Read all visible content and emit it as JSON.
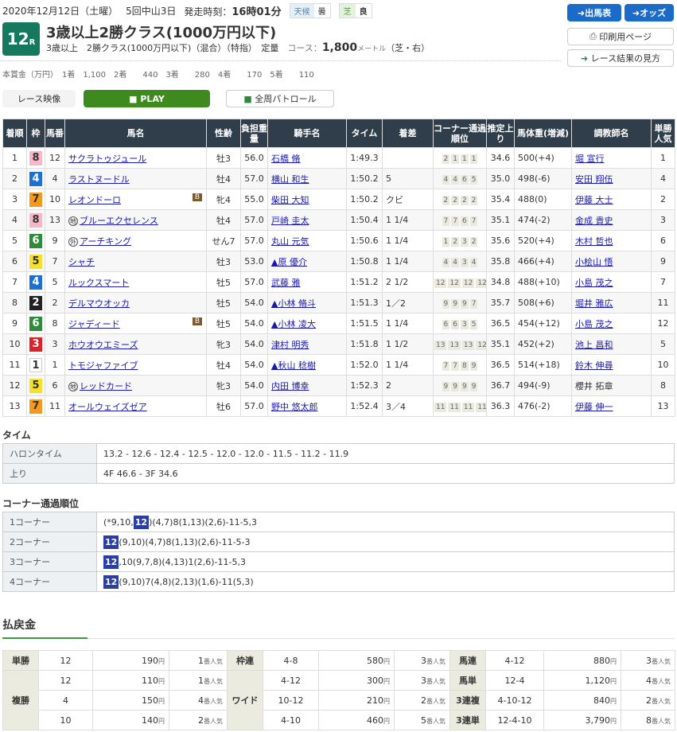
{
  "header": {
    "date": "2020年12月12日（土曜）",
    "meeting": "5回中山3日",
    "start_label": "発走時刻：",
    "start_time": "16時01分",
    "weather_label": "天候",
    "weather": "曇",
    "surface_label": "芝",
    "condition": "良"
  },
  "race": {
    "number": "12",
    "r": "R",
    "title": "3歳以上2勝クラス(1000万円以下)",
    "sub": "3歳以上　2勝クラス(1000万円以下)（混合）（特指）　定量",
    "course_label": "コース：",
    "distance": "1,800",
    "unit": "メートル",
    "course_detail": "（芝・右）"
  },
  "prize": "本賞金（万円）　1着　1,100　2着　　440　3着　　280　4着　　170　5着　　110",
  "buttons": {
    "entries": "出馬表",
    "odds": "オッズ",
    "print": "印刷用ページ",
    "howto": "レース結果の見方",
    "video": "レース映像",
    "play": "PLAY",
    "patrol": "全周パトロール"
  },
  "colors": {
    "accent": "#157a5d",
    "header_bg": "#2f3e4a",
    "button_blue": "#1b6bc8",
    "play_green": "#3e8a1e",
    "highlight": "#2b3fa0"
  },
  "columns": [
    "着順",
    "枠",
    "馬番",
    "馬名",
    "性齢",
    "負担重量",
    "騎手名",
    "タイム",
    "着差",
    "コーナー通過順位",
    "推定上り",
    "馬体重(増減)",
    "調教師名",
    "単勝人気"
  ],
  "results": [
    {
      "pos": "1",
      "waku": "8",
      "num": "12",
      "horse": "サクラトゥジュール",
      "mark": "",
      "blinker": false,
      "sex": "牡3",
      "wt": "56.0",
      "jockey": "石橋 脩",
      "time": "1:49.3",
      "margin": "",
      "corners": [
        "2",
        "1",
        "1",
        "1"
      ],
      "last": "34.6",
      "bw": "500(+4)",
      "trainer": "堀 宣行",
      "pop": "1"
    },
    {
      "pos": "2",
      "waku": "4",
      "num": "4",
      "horse": "ラストヌードル",
      "mark": "",
      "blinker": false,
      "sex": "牡4",
      "wt": "57.0",
      "jockey": "横山 和生",
      "time": "1:50.2",
      "margin": "5",
      "corners": [
        "4",
        "4",
        "6",
        "5"
      ],
      "last": "35.0",
      "bw": "498(-6)",
      "trainer": "安田 翔伍",
      "pop": "4"
    },
    {
      "pos": "3",
      "waku": "7",
      "num": "10",
      "horse": "レオンドーロ",
      "mark": "",
      "blinker": true,
      "sex": "牝4",
      "wt": "55.0",
      "jockey": "柴田 大知",
      "time": "1:50.2",
      "margin": "クビ",
      "corners": [
        "2",
        "2",
        "2",
        "2"
      ],
      "last": "35.4",
      "bw": "488(0)",
      "trainer": "伊藤 大士",
      "pop": "2"
    },
    {
      "pos": "4",
      "waku": "8",
      "num": "13",
      "horse": "ブルーエクセレンス",
      "mark": "地",
      "blinker": false,
      "sex": "牡4",
      "wt": "57.0",
      "jockey": "戸崎 圭太",
      "time": "1:50.4",
      "margin": "1 1/4",
      "corners": [
        "7",
        "7",
        "6",
        "7"
      ],
      "last": "35.1",
      "bw": "474(-2)",
      "trainer": "金成 貴史",
      "pop": "3"
    },
    {
      "pos": "5",
      "waku": "6",
      "num": "9",
      "horse": "アーチキング",
      "mark": "外",
      "blinker": false,
      "sex": "せん7",
      "wt": "57.0",
      "jockey": "丸山 元気",
      "time": "1:50.6",
      "margin": "1 1/4",
      "corners": [
        "1",
        "2",
        "3",
        "2"
      ],
      "last": "35.6",
      "bw": "520(+4)",
      "trainer": "木村 哲也",
      "pop": "6"
    },
    {
      "pos": "6",
      "waku": "5",
      "num": "7",
      "horse": "シャチ",
      "mark": "",
      "blinker": false,
      "sex": "牡3",
      "wt": "53.0",
      "jockey": "▲原 優介",
      "time": "1:50.8",
      "margin": "1 1/4",
      "corners": [
        "4",
        "4",
        "3",
        "4"
      ],
      "last": "35.8",
      "bw": "466(+4)",
      "trainer": "小桧山 悟",
      "pop": "9"
    },
    {
      "pos": "7",
      "waku": "4",
      "num": "5",
      "horse": "ルックスマート",
      "mark": "",
      "blinker": false,
      "sex": "牡5",
      "wt": "57.0",
      "jockey": "武藤 雅",
      "time": "1:51.2",
      "margin": "2 1/2",
      "corners": [
        "12",
        "12",
        "12",
        "12"
      ],
      "last": "34.8",
      "bw": "488(+10)",
      "trainer": "小島 茂之",
      "pop": "7"
    },
    {
      "pos": "8",
      "waku": "2",
      "num": "2",
      "horse": "デルマウオッカ",
      "mark": "",
      "blinker": false,
      "sex": "牡5",
      "wt": "54.0",
      "jockey": "▲小林 脩斗",
      "time": "1:51.3",
      "margin": "1／2",
      "corners": [
        "9",
        "9",
        "9",
        "7"
      ],
      "last": "35.7",
      "bw": "508(+6)",
      "trainer": "堀井 雅広",
      "pop": "11"
    },
    {
      "pos": "9",
      "waku": "6",
      "num": "8",
      "horse": "ジャディード",
      "mark": "",
      "blinker": true,
      "sex": "牡5",
      "wt": "54.0",
      "jockey": "▲小林 凌大",
      "time": "1:51.5",
      "margin": "1 1/4",
      "corners": [
        "6",
        "6",
        "3",
        "5"
      ],
      "last": "36.5",
      "bw": "454(+12)",
      "trainer": "小島 茂之",
      "pop": "12"
    },
    {
      "pos": "10",
      "waku": "3",
      "num": "3",
      "horse": "ホウオウエミーズ",
      "mark": "",
      "blinker": false,
      "sex": "牝3",
      "wt": "54.0",
      "jockey": "津村 明秀",
      "time": "1:51.8",
      "margin": "1 1/2",
      "corners": [
        "13",
        "13",
        "13",
        "12"
      ],
      "last": "35.1",
      "bw": "452(+2)",
      "trainer": "池上 昌和",
      "pop": "5"
    },
    {
      "pos": "11",
      "waku": "1",
      "num": "1",
      "horse": "トモジャファイブ",
      "mark": "",
      "blinker": false,
      "sex": "牡4",
      "wt": "54.0",
      "jockey": "▲秋山 稔樹",
      "time": "1:52.0",
      "margin": "1 1/4",
      "corners": [
        "7",
        "7",
        "8",
        "9"
      ],
      "last": "36.5",
      "bw": "514(+18)",
      "trainer": "鈴木 伸尋",
      "pop": "10"
    },
    {
      "pos": "12",
      "waku": "5",
      "num": "6",
      "horse": "レッドカード",
      "mark": "地",
      "blinker": false,
      "sex": "牝3",
      "wt": "54.0",
      "jockey": "内田 博幸",
      "time": "1:52.3",
      "margin": "2",
      "corners": [
        "9",
        "9",
        "9",
        "9"
      ],
      "last": "36.7",
      "bw": "494(-9)",
      "trainer": "櫻井 拓章",
      "pop": "8"
    },
    {
      "pos": "13",
      "waku": "7",
      "num": "11",
      "horse": "オールウェイズゼア",
      "mark": "",
      "blinker": false,
      "sex": "牡6",
      "wt": "57.0",
      "jockey": "野中 悠太郎",
      "time": "1:52.4",
      "margin": "3／4",
      "corners": [
        "11",
        "11",
        "11",
        "11"
      ],
      "last": "36.3",
      "bw": "476(-2)",
      "trainer": "伊藤 伸一",
      "pop": "13"
    }
  ],
  "times": {
    "title": "タイム",
    "rows": [
      {
        "label": "ハロンタイム",
        "value": "13.2 - 12.6 - 12.4 - 12.5 - 12.0 - 12.0 - 11.5 - 11.2 - 11.9"
      },
      {
        "label": "上り",
        "value": "4F 46.6 - 3F 34.6"
      }
    ]
  },
  "corners": {
    "title": "コーナー通過順位",
    "rows": [
      {
        "label": "1コーナー",
        "pre": "(*9,10,",
        "hl": "12",
        "post": ")(4,7)8(1,13)(2,6)-11-5,3"
      },
      {
        "label": "2コーナー",
        "pre": "",
        "hl": "12",
        "post": "(9,10)(4,7)8(1,13)(2,6)-11-5-3"
      },
      {
        "label": "3コーナー",
        "pre": "",
        "hl": "12",
        "post": ",10(9,7,8)(4,13)1(2,6)-11-5,3"
      },
      {
        "label": "4コーナー",
        "pre": "",
        "hl": "12",
        "post": "(9,10)7(4,8)(2,13)(1,6)-11(5,3)"
      }
    ]
  },
  "payout": {
    "title": "払戻金",
    "yen": "円",
    "pop_suffix": "番人気",
    "tansho": {
      "label": "単勝",
      "rows": [
        [
          "12",
          "190",
          "1"
        ]
      ]
    },
    "fukusho": {
      "label": "複勝",
      "rows": [
        [
          "12",
          "110",
          "1"
        ],
        [
          "4",
          "150",
          "4"
        ],
        [
          "10",
          "140",
          "2"
        ]
      ]
    },
    "wakuren": {
      "label": "枠連",
      "rows": [
        [
          "4-8",
          "580",
          "3"
        ]
      ]
    },
    "wide": {
      "label": "ワイド",
      "rows": [
        [
          "4-12",
          "300",
          "3"
        ],
        [
          "10-12",
          "210",
          "2"
        ],
        [
          "4-10",
          "460",
          "5"
        ]
      ]
    },
    "umaren": {
      "label": "馬連",
      "rows": [
        [
          "4-12",
          "880",
          "3"
        ]
      ]
    },
    "umatan": {
      "label": "馬単",
      "rows": [
        [
          "12-4",
          "1,120",
          "4"
        ]
      ]
    },
    "sanrenpuku": {
      "label": "3連複",
      "rows": [
        [
          "4-10-12",
          "840",
          "2"
        ]
      ]
    },
    "sanrentan": {
      "label": "3連単",
      "rows": [
        [
          "12-4-10",
          "3,790",
          "8"
        ]
      ]
    }
  }
}
